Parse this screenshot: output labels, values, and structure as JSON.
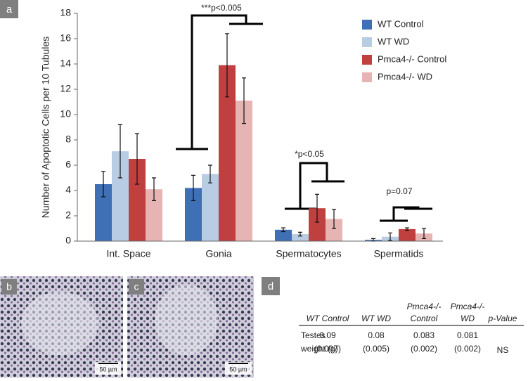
{
  "panel_labels": [
    "a",
    "b",
    "c",
    "d"
  ],
  "chart_data": {
    "type": "bar",
    "y_label": "Number of Apoptotic Cells per 10 Tubules",
    "categories": [
      "Int. Space",
      "Gonia",
      "Spermatocytes",
      "Spermatids"
    ],
    "series": [
      {
        "name": "WT Control",
        "color": "#3f6fb5",
        "values": [
          4.5,
          4.2,
          0.9,
          0.1
        ],
        "errors": [
          1.0,
          1.0,
          0.15,
          0.1
        ]
      },
      {
        "name": "WT WD",
        "color": "#b8cce4",
        "values": [
          7.1,
          5.3,
          0.55,
          0.35
        ],
        "errors": [
          2.1,
          0.7,
          0.15,
          0.3
        ]
      },
      {
        "name": "Pmca4-/- Control",
        "color": "#c0403f",
        "values": [
          6.5,
          13.9,
          2.6,
          0.95
        ],
        "errors": [
          2.0,
          2.5,
          1.1,
          0.1
        ]
      },
      {
        "name": "Pmca4-/- WD",
        "color": "#e6b5b3",
        "values": [
          4.1,
          11.1,
          1.75,
          0.6
        ],
        "errors": [
          0.9,
          1.8,
          0.75,
          0.4
        ]
      }
    ],
    "annotations": [
      "***p<0.005",
      "*p<0.05",
      "p=0.07"
    ],
    "ylim": [
      0,
      18
    ],
    "yticks": [
      0,
      2,
      4,
      6,
      8,
      10,
      12,
      14,
      16,
      18
    ],
    "grid": false,
    "legend": "right"
  },
  "micrographs": {
    "scale_bar": [
      "50 µm",
      "50 µm"
    ]
  },
  "table": {
    "header": [
      [
        "WT Control"
      ],
      [
        "WT WD"
      ],
      [
        "Pmca4-/-",
        "Control"
      ],
      [
        "Pmca4-/-",
        "WD"
      ],
      [
        "p-Value"
      ]
    ],
    "row_label": [
      "Testes",
      "weight (g)"
    ],
    "cells": [
      [
        "0.09",
        "(0.007)"
      ],
      [
        "0.08",
        "(0.005)"
      ],
      [
        "0.083",
        "(0.002)"
      ],
      [
        "0.081",
        "(0.002)"
      ],
      [
        "NS"
      ]
    ]
  }
}
